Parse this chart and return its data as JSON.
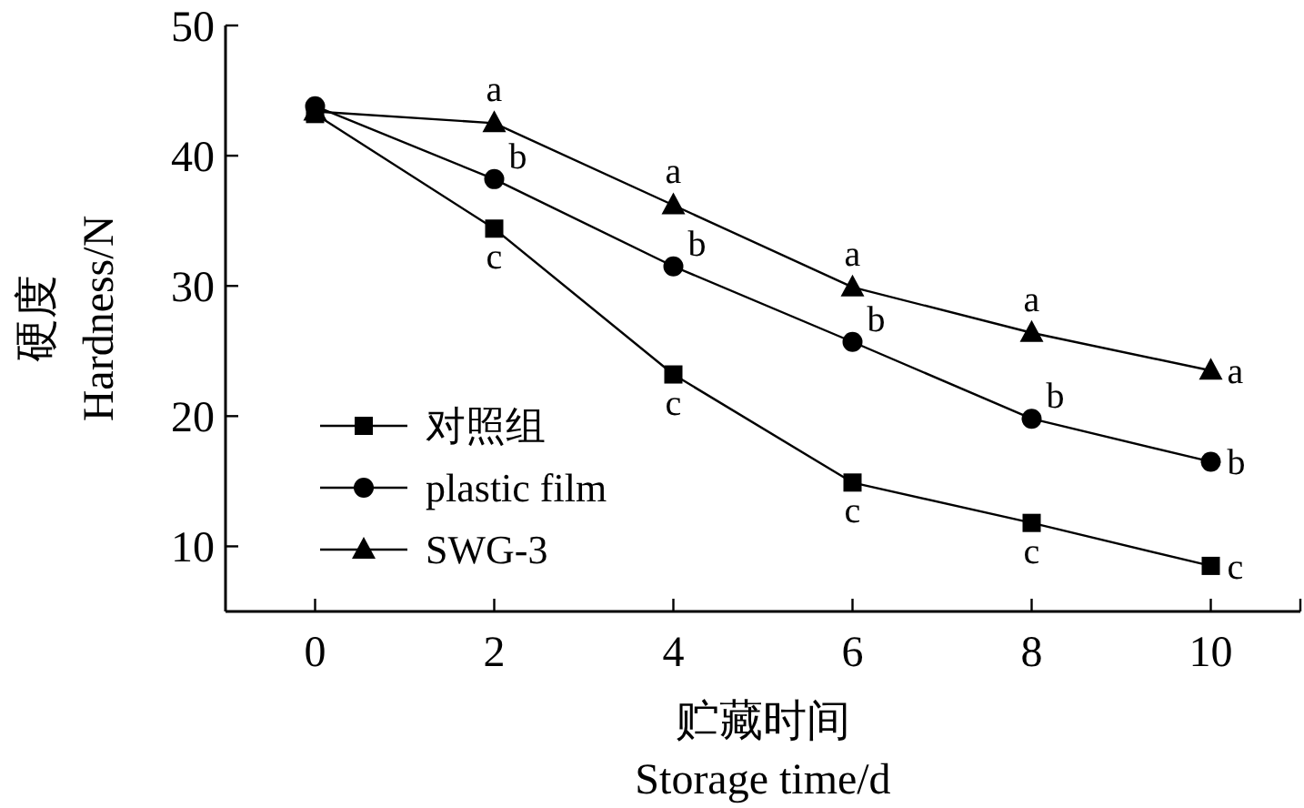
{
  "chart_data": {
    "type": "line",
    "xlabel": "贮藏时间\nStorage time/d",
    "ylabel": "硬度\nHardness/N",
    "x": [
      0,
      2,
      4,
      6,
      8,
      10
    ],
    "xlim": [
      -1,
      11
    ],
    "xticks": [
      0,
      2,
      4,
      6,
      8,
      10
    ],
    "ylim": [
      5,
      50
    ],
    "yticks": [
      10,
      20,
      30,
      40,
      50
    ],
    "legend": "bottom left",
    "grid": false,
    "line_style": "solid",
    "series": [
      {
        "name": "对照组",
        "color": "#000000",
        "marker": "square",
        "values": [
          43.2,
          34.4,
          23.2,
          14.9,
          11.8,
          8.5
        ]
      },
      {
        "name": "plastic film",
        "color": "#000000",
        "marker": "circle",
        "values": [
          43.8,
          38.2,
          31.5,
          25.7,
          19.8,
          16.5
        ]
      },
      {
        "name": "SWG-3",
        "color": "#000000",
        "marker": "triangle",
        "values": [
          43.4,
          42.5,
          36.2,
          29.9,
          26.4,
          23.5
        ]
      }
    ],
    "annotations": [
      {
        "text": "a",
        "x": 2,
        "y": 42.5
      },
      {
        "text": "b",
        "x": 2,
        "y": 38.2
      },
      {
        "text": "c",
        "x": 2,
        "y": 34.4
      },
      {
        "text": "a",
        "x": 4,
        "y": 36.2
      },
      {
        "text": "b",
        "x": 4,
        "y": 31.5
      },
      {
        "text": "c",
        "x": 4,
        "y": 23.2
      },
      {
        "text": "a",
        "x": 6,
        "y": 29.9
      },
      {
        "text": "b",
        "x": 6,
        "y": 25.7
      },
      {
        "text": "c",
        "x": 6,
        "y": 14.9
      },
      {
        "text": "a",
        "x": 8,
        "y": 26.4
      },
      {
        "text": "b",
        "x": 8,
        "y": 19.8
      },
      {
        "text": "c",
        "x": 8,
        "y": 11.8
      },
      {
        "text": "a",
        "x": 10,
        "y": 23.5
      },
      {
        "text": "b",
        "x": 10,
        "y": 16.5
      },
      {
        "text": "c",
        "x": 10,
        "y": 8.5
      }
    ]
  }
}
